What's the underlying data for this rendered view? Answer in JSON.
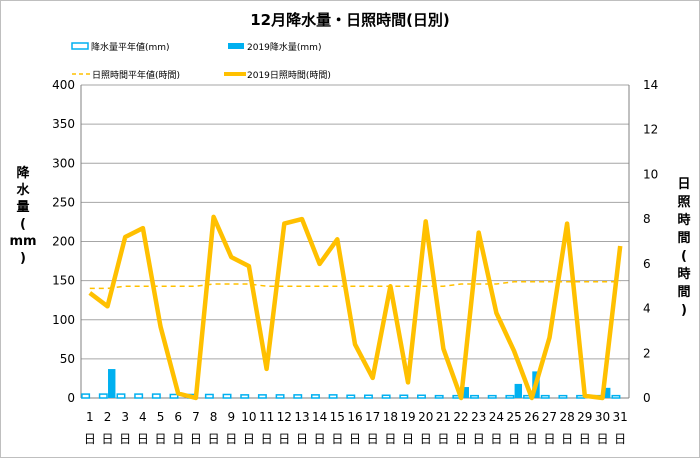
{
  "chart_data": {
    "type": "bar+line",
    "title": "12月降水量・日照時間(日別)",
    "legend": [
      {
        "key": "precip_avg",
        "label": "降水量平年値(mm)"
      },
      {
        "key": "precip_2019",
        "label": "2019降水量(mm)"
      },
      {
        "key": "sun_avg",
        "label": "日照時間平年値(時間)"
      },
      {
        "key": "sun_2019",
        "label": "2019日照時間(時間)"
      }
    ],
    "ylabel_left": [
      "降",
      "水",
      "量",
      "(",
      "mm",
      ")"
    ],
    "ylabel_right": [
      "日",
      "照",
      "時",
      "間",
      "(",
      "時",
      "間",
      ")"
    ],
    "ylim_left": [
      0,
      400
    ],
    "ylim_right": [
      0,
      14
    ],
    "yticks_left": [
      "0",
      "50",
      "100",
      "150",
      "200",
      "250",
      "300",
      "350",
      "400"
    ],
    "yticks_right": [
      "0",
      "2",
      "4",
      "6",
      "8",
      "10",
      "12",
      "14"
    ],
    "x_day_numbers": [
      "1",
      "2",
      "3",
      "4",
      "5",
      "6",
      "7",
      "8",
      "9",
      "10",
      "11",
      "12",
      "13",
      "14",
      "15",
      "16",
      "17",
      "18",
      "19",
      "20",
      "21",
      "22",
      "23",
      "24",
      "25",
      "26",
      "27",
      "28",
      "29",
      "30",
      "31"
    ],
    "x_day_suffix": "日",
    "precip_avg": [
      5,
      5,
      5,
      5,
      5,
      4.5,
      4.5,
      4.5,
      4.5,
      4,
      4,
      4,
      4,
      4,
      4,
      3.5,
      3.5,
      3.5,
      3.5,
      3.5,
      3,
      3,
      3,
      3,
      3,
      3,
      3,
      3,
      3,
      3,
      3
    ],
    "precip_2019": [
      0,
      37,
      0,
      0,
      0,
      0,
      0,
      0,
      0,
      0,
      0,
      0,
      0,
      0,
      0,
      0,
      0,
      0,
      0,
      0,
      0,
      14,
      0,
      0,
      18,
      34,
      0,
      0,
      0,
      13,
      0
    ],
    "sun_avg": [
      4.9,
      4.9,
      5.0,
      5.0,
      5.0,
      5.0,
      5.0,
      5.1,
      5.1,
      5.1,
      5.0,
      5.0,
      5.0,
      5.0,
      5.0,
      5.0,
      5.0,
      5.0,
      5.0,
      5.0,
      5.0,
      5.1,
      5.1,
      5.1,
      5.2,
      5.2,
      5.2,
      5.2,
      5.2,
      5.2,
      5.2
    ],
    "sun_2019": [
      4.7,
      4.1,
      7.2,
      7.6,
      3.2,
      0.2,
      0.0,
      8.1,
      6.3,
      5.9,
      1.3,
      7.8,
      8.0,
      6.0,
      7.1,
      2.4,
      0.9,
      5.0,
      0.7,
      7.9,
      2.2,
      0.0,
      7.4,
      3.8,
      2.1,
      0.0,
      2.7,
      7.8,
      0.1,
      0.0,
      6.8
    ],
    "colors": {
      "precip_avg": "#00b0f0",
      "precip_2019": "#00b0f0",
      "sun_avg": "#ffc000",
      "sun_2019": "#ffc000",
      "grid": "#a6a6a6"
    }
  }
}
